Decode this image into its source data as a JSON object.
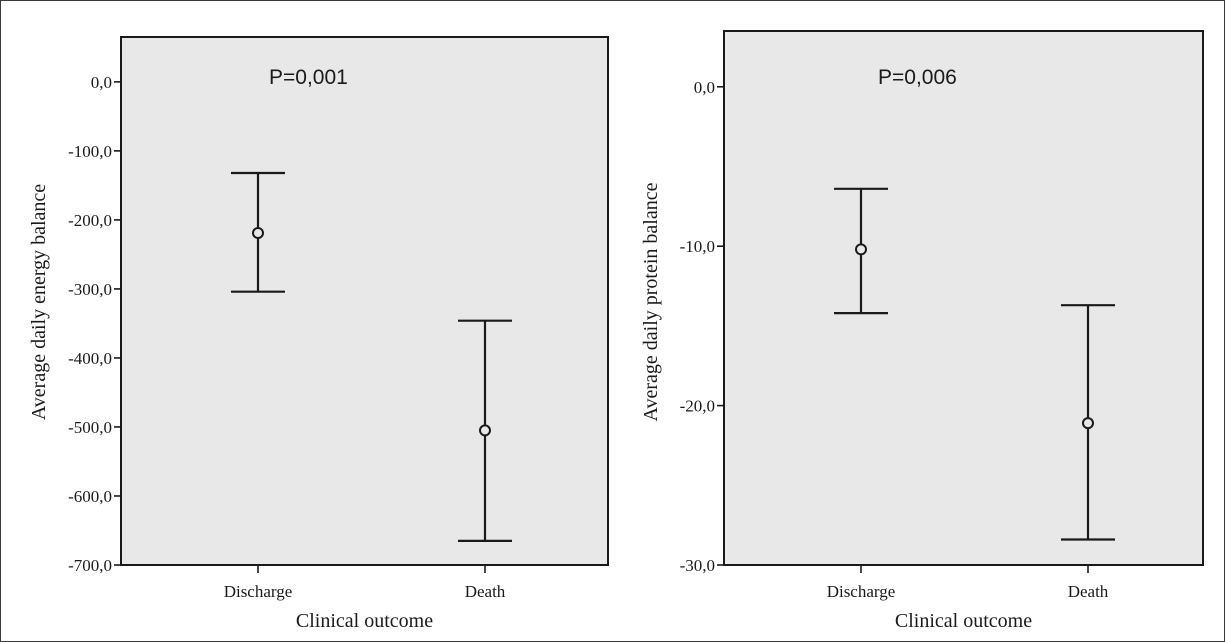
{
  "chart_data": [
    {
      "type": "errorbar",
      "annotation": "P=0,001",
      "xlabel": "Clinical outcome",
      "ylabel": "Average daily energy balance",
      "categories": [
        "Discharge",
        "Death"
      ],
      "ylim": [
        -700,
        65
      ],
      "yticks": [
        0,
        -100,
        -200,
        -300,
        -400,
        -500,
        -600,
        -700
      ],
      "ytick_labels": [
        "0,0",
        "-100,0",
        "-200,0",
        "-300,0",
        "-400,0",
        "-500,0",
        "-600,0",
        "-700,0"
      ],
      "series": [
        {
          "mean": [
            -219,
            -505
          ],
          "upper": [
            -132,
            -346
          ],
          "lower": [
            -304,
            -665
          ]
        }
      ]
    },
    {
      "type": "errorbar",
      "annotation": "P=0,006",
      "xlabel": "Clinical outcome",
      "ylabel": "Average daily protein balance",
      "categories": [
        "Discharge",
        "Death"
      ],
      "ylim": [
        -30,
        3.5
      ],
      "yticks": [
        0,
        -10,
        -20,
        -30
      ],
      "ytick_labels": [
        "0,0",
        "-10,0",
        "-20,0",
        "-30,0"
      ],
      "series": [
        {
          "mean": [
            -10.2,
            -21.1
          ],
          "upper": [
            -6.4,
            -13.7
          ],
          "lower": [
            -14.2,
            -28.4
          ]
        }
      ]
    }
  ]
}
